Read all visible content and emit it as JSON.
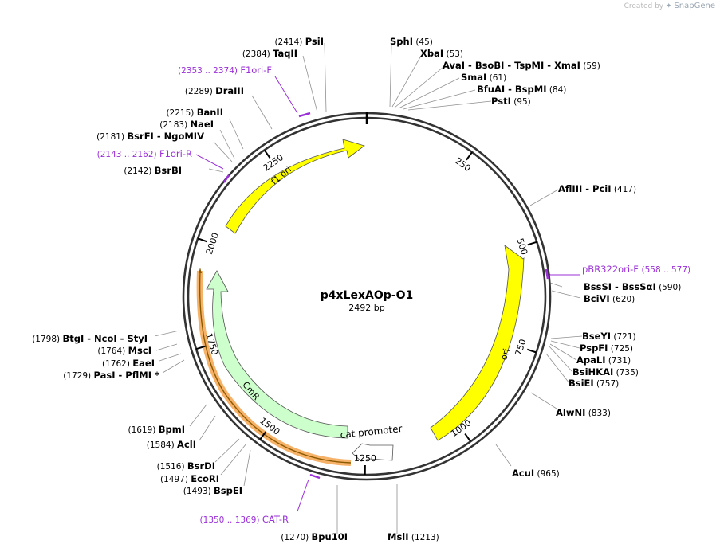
{
  "header": {
    "created_by": "Created by",
    "brand": "SnapGene"
  },
  "plasmid": {
    "name": "p4xLexAOp-O1",
    "size_label": "2492 bp",
    "length": 2492
  },
  "ticks": [
    {
      "pos": 250,
      "label": "250"
    },
    {
      "pos": 500,
      "label": "500"
    },
    {
      "pos": 750,
      "label": "750"
    },
    {
      "pos": 1000,
      "label": "1000"
    },
    {
      "pos": 1250,
      "label": "1250"
    },
    {
      "pos": 1500,
      "label": "1500"
    },
    {
      "pos": 1750,
      "label": "1750"
    },
    {
      "pos": 2000,
      "label": "2000"
    },
    {
      "pos": 2250,
      "label": "2250"
    }
  ],
  "features": [
    {
      "name": "f1 ori",
      "color": "#ffff00",
      "kind": "arrow"
    },
    {
      "name": "ori",
      "color": "#ffff00",
      "kind": "arrow"
    },
    {
      "name": "CmR",
      "color": "#ccffcc",
      "kind": "arrow"
    },
    {
      "name": "cat promoter",
      "color": "#ffffff",
      "kind": "arrow"
    }
  ],
  "orf_color": "#f7b26a",
  "primers": [
    {
      "range": "(2353 .. 2374)",
      "name": "F1ori-F"
    },
    {
      "range": "(2143 .. 2162)",
      "name": "F1ori-R"
    },
    {
      "range": "(558 .. 577)",
      "name": "pBR322ori-F"
    },
    {
      "range": "(1350 .. 1369)",
      "name": "CAT-R"
    }
  ],
  "primer_color": "#9b30d9",
  "left_sites": [
    {
      "pos": "(2414)",
      "names": [
        "PsiI"
      ]
    },
    {
      "pos": "(2384)",
      "names": [
        "TaqII"
      ]
    },
    {
      "pos": "(2289)",
      "names": [
        "DraIII"
      ]
    },
    {
      "pos": "(2215)",
      "names": [
        "BanII"
      ]
    },
    {
      "pos": "(2183)",
      "names": [
        "NaeI"
      ]
    },
    {
      "pos": "(2181)",
      "names": [
        "BsrFI",
        "NgoMIV"
      ]
    },
    {
      "pos": "(2142)",
      "names": [
        "BsrBI"
      ]
    },
    {
      "pos": "(1798)",
      "names": [
        "BtgI",
        "NcoI",
        "StyI"
      ]
    },
    {
      "pos": "(1764)",
      "names": [
        "MscI"
      ]
    },
    {
      "pos": "(1762)",
      "names": [
        "EaeI"
      ]
    },
    {
      "pos": "(1729)",
      "names": [
        "PasI",
        "PflMI *"
      ]
    },
    {
      "pos": "(1619)",
      "names": [
        "BpmI"
      ]
    },
    {
      "pos": "(1584)",
      "names": [
        "AclI"
      ]
    },
    {
      "pos": "(1516)",
      "names": [
        "BsrDI"
      ]
    },
    {
      "pos": "(1497)",
      "names": [
        "EcoRI"
      ]
    },
    {
      "pos": "(1493)",
      "names": [
        "BspEI"
      ]
    },
    {
      "pos": "(1270)",
      "names": [
        "Bpu10I"
      ]
    }
  ],
  "right_sites": [
    {
      "pos": "(45)",
      "names": [
        "SphI"
      ]
    },
    {
      "pos": "(53)",
      "names": [
        "XbaI"
      ]
    },
    {
      "pos": "(59)",
      "names": [
        "AvaI",
        "BsoBI",
        "TspMI",
        "XmaI"
      ]
    },
    {
      "pos": "(61)",
      "names": [
        "SmaI"
      ]
    },
    {
      "pos": "(84)",
      "names": [
        "BfuAI",
        "BspMI"
      ]
    },
    {
      "pos": "(95)",
      "names": [
        "PstI"
      ]
    },
    {
      "pos": "(417)",
      "names": [
        "AflIII",
        "PciI"
      ]
    },
    {
      "pos": "(590)",
      "names": [
        "BssSI",
        "BssSαI"
      ]
    },
    {
      "pos": "(620)",
      "names": [
        "BciVI"
      ]
    },
    {
      "pos": "(721)",
      "names": [
        "BseYI"
      ]
    },
    {
      "pos": "(725)",
      "names": [
        "PspFI"
      ]
    },
    {
      "pos": "(731)",
      "names": [
        "ApaLI"
      ]
    },
    {
      "pos": "(735)",
      "names": [
        "BsiHKAI"
      ]
    },
    {
      "pos": "(757)",
      "names": [
        "BsiEI"
      ]
    },
    {
      "pos": "(833)",
      "names": [
        "AlwNI"
      ]
    },
    {
      "pos": "(965)",
      "names": [
        "AcuI"
      ]
    },
    {
      "pos": "(1213)",
      "names": [
        "MslI"
      ]
    }
  ]
}
